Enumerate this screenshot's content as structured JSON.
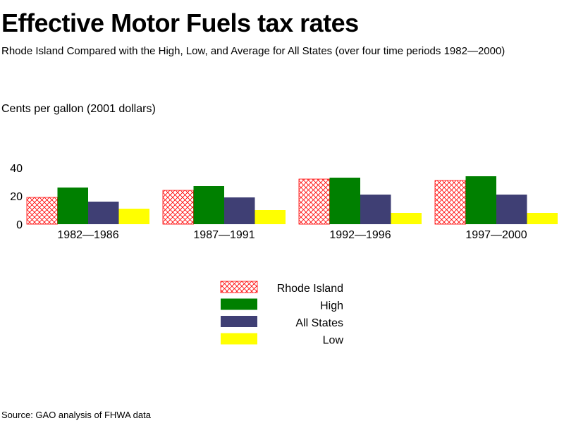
{
  "title": "Effective Motor Fuels tax rates",
  "subtitle": "Rhode Island Compared with the High, Low, and Average for All States (over four time periods 1982—2000)",
  "unit_label": "Cents per gallon (2001 dollars)",
  "source": "Source: GAO analysis of FHWA data",
  "chart_data": {
    "type": "bar",
    "categories": [
      "1982—1986",
      "1987—1991",
      "1992—1996",
      "1997—2000"
    ],
    "series": [
      {
        "name": "Rhode Island",
        "values": [
          19,
          24,
          32,
          31
        ],
        "color": "#ff0000",
        "pattern": "crosshatch"
      },
      {
        "name": "High",
        "values": [
          26,
          27,
          33,
          34
        ],
        "color": "#008000"
      },
      {
        "name": "All States",
        "values": [
          16,
          19,
          21,
          21
        ],
        "color": "#3f3f74"
      },
      {
        "name": "Low",
        "values": [
          11,
          10,
          8,
          8
        ],
        "color": "#ffff00"
      }
    ],
    "ylim": [
      0,
      40
    ],
    "yticks": [
      0,
      20,
      40
    ],
    "grid": false,
    "legend_position": "bottom-center"
  }
}
